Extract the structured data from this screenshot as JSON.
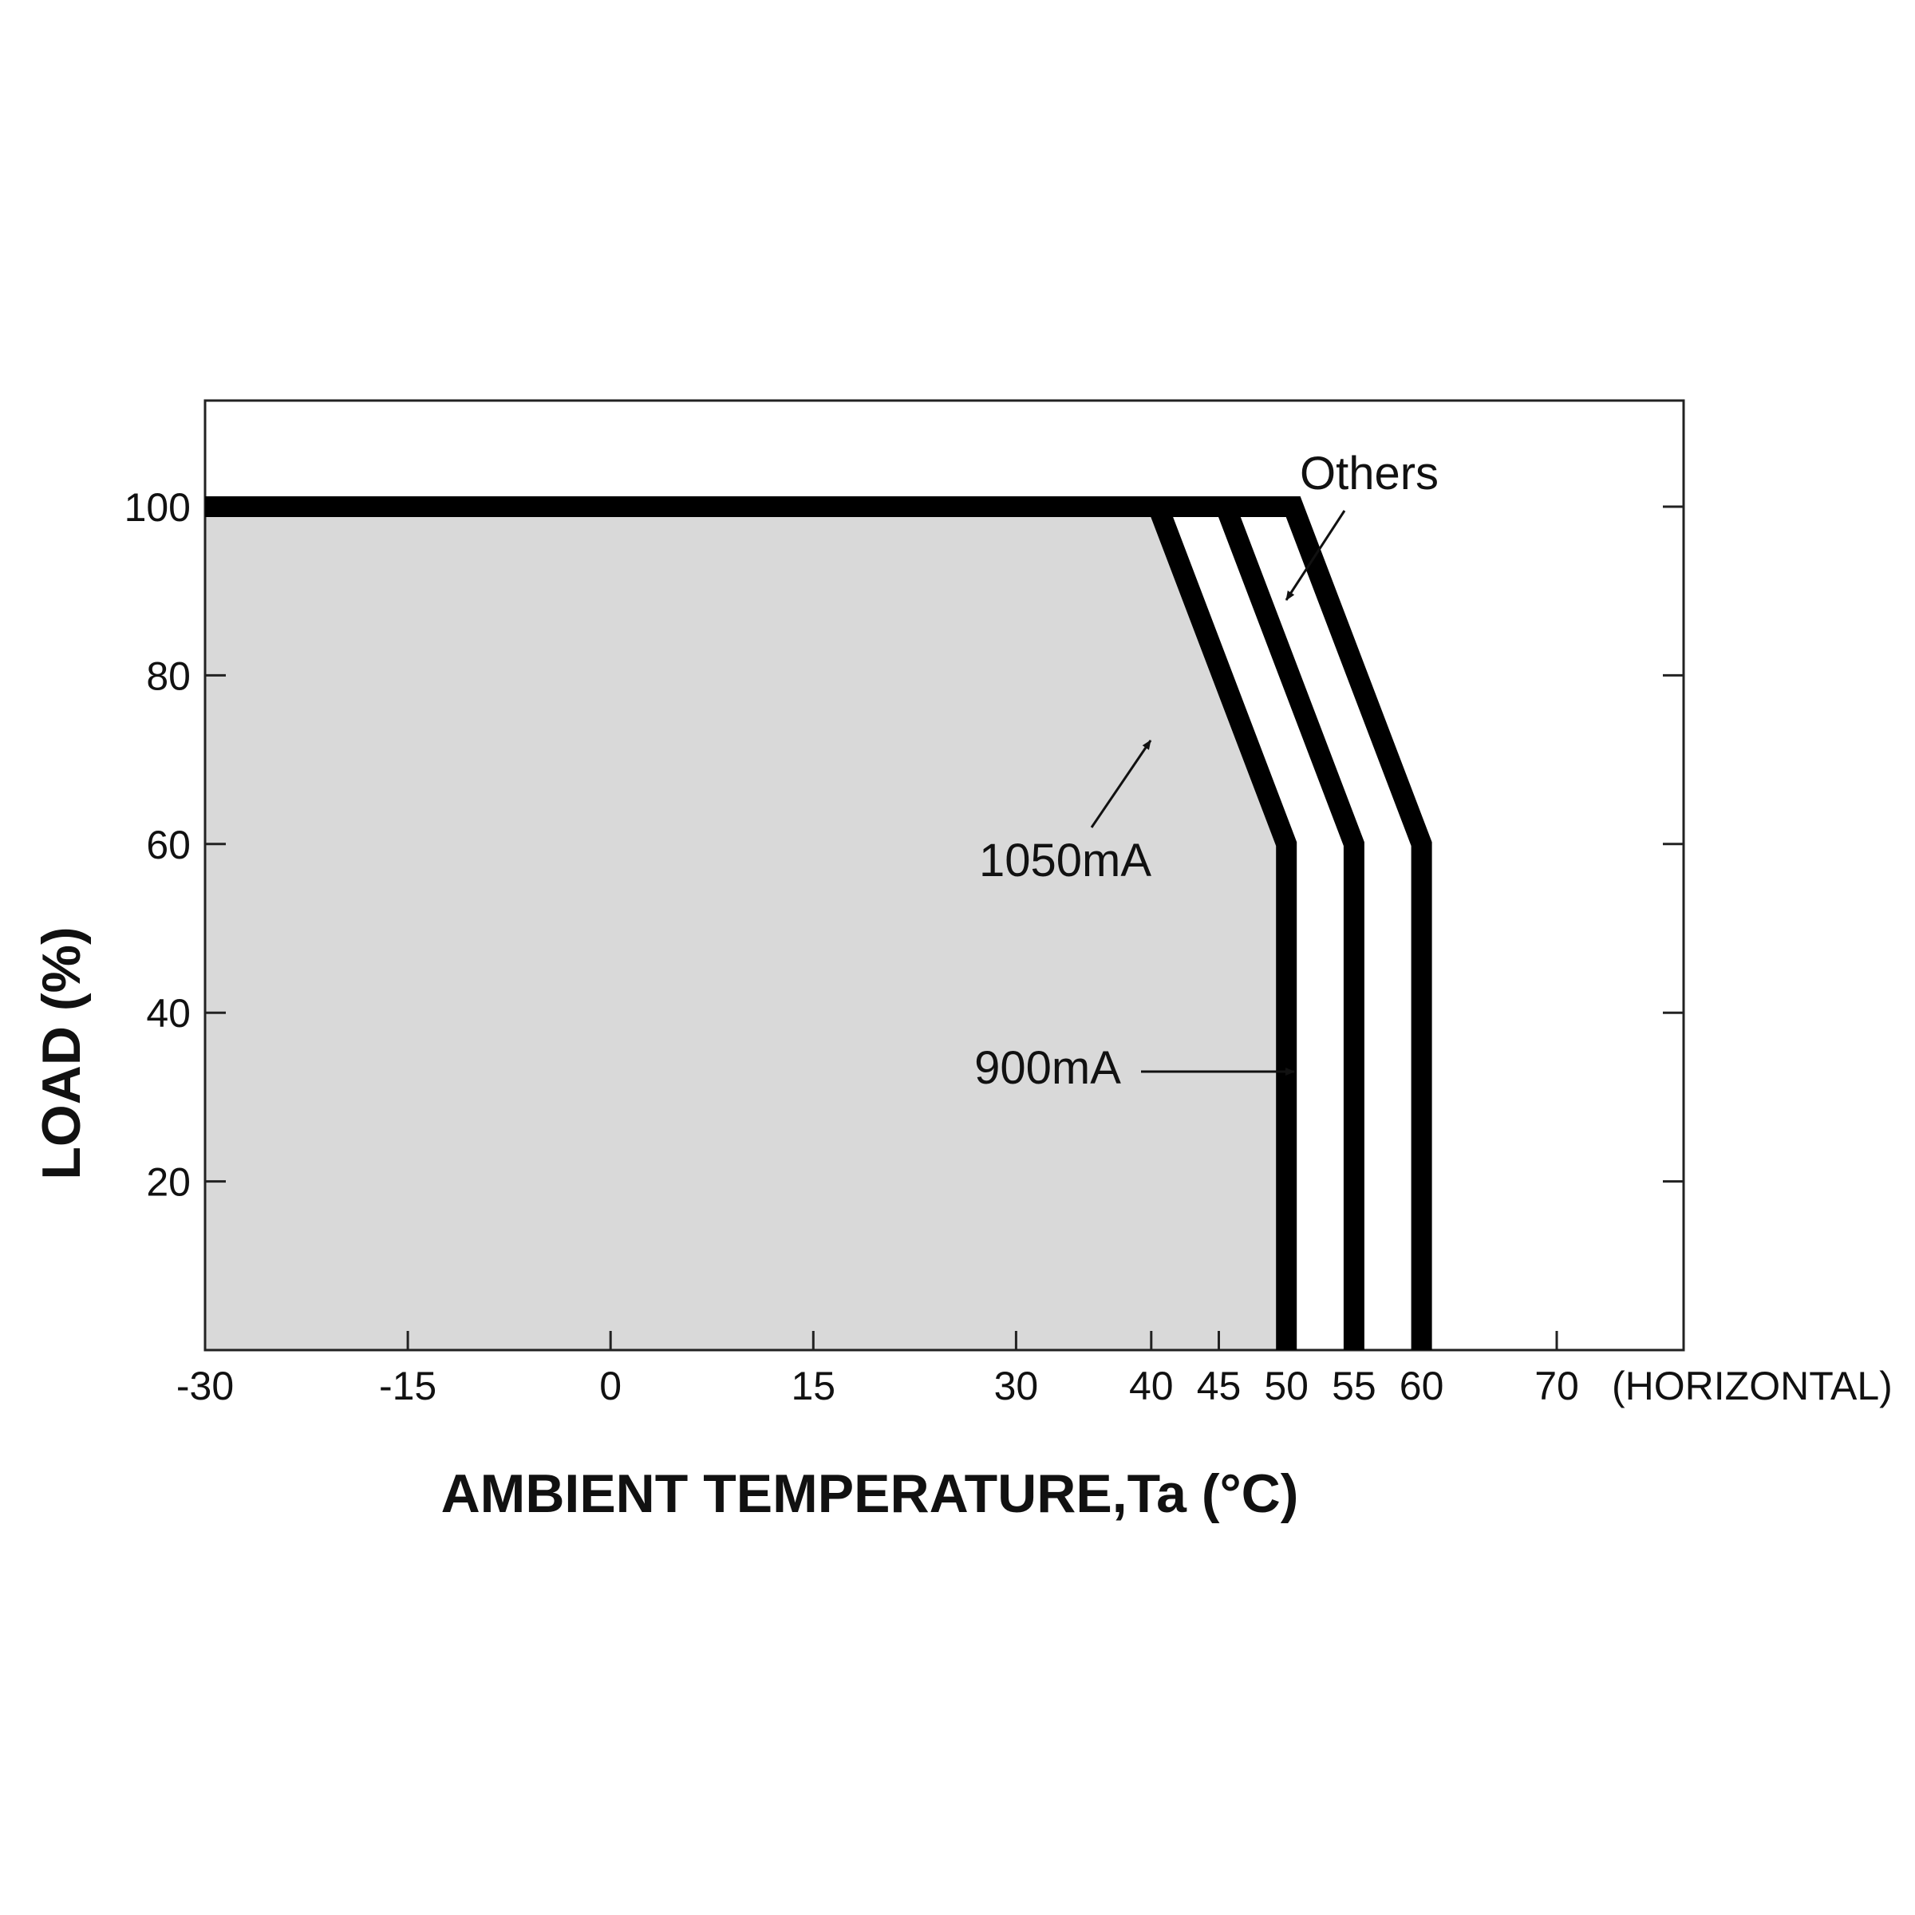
{
  "chart_data": {
    "type": "line",
    "title": "",
    "xlabel": "AMBIENT TEMPERATURE,Ta (°C)",
    "ylabel": "LOAD (%)",
    "x_axis_note": "(HORIZONTAL)",
    "xticks": [
      -30,
      -15,
      0,
      15,
      30,
      40,
      45,
      50,
      55,
      60,
      70
    ],
    "yticks": [
      20,
      40,
      60,
      80,
      100
    ],
    "xlim": [
      -30,
      75
    ],
    "ylim": [
      0,
      112
    ],
    "grid": false,
    "shaded_area_color": "#d9d9d9",
    "line_color": "#000000",
    "series": [
      {
        "name": "1050mA",
        "x": [
          -30,
          40.5,
          50,
          50
        ],
        "y": [
          100,
          100,
          60,
          0
        ]
      },
      {
        "name": "900mA",
        "x": [
          -30,
          45.5,
          55,
          55
        ],
        "y": [
          100,
          100,
          60,
          0
        ]
      },
      {
        "name": "Others",
        "x": [
          -30,
          50.5,
          60,
          60
        ],
        "y": [
          100,
          100,
          60,
          0
        ]
      }
    ],
    "annotations": [
      {
        "text": "Others",
        "series": "Others"
      },
      {
        "text": "1050mA",
        "series": "1050mA"
      },
      {
        "text": "900mA",
        "series": "900mA"
      }
    ]
  }
}
